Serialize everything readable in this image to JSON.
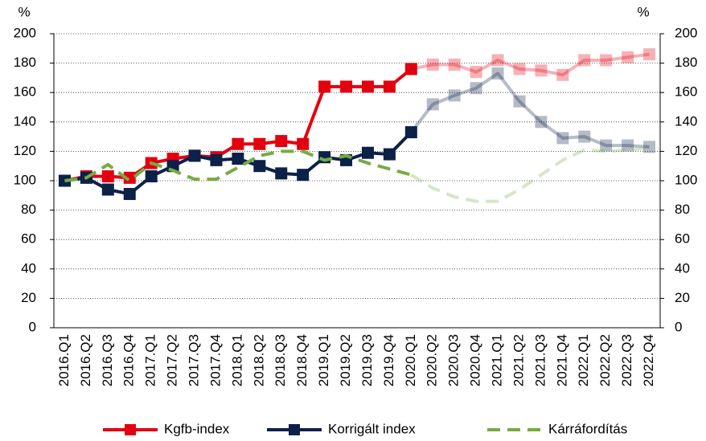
{
  "chart_data": {
    "type": "line",
    "y_unit_left": "%",
    "y_unit_right": "%",
    "categories": [
      "2016.Q1",
      "2016.Q2",
      "2016.Q3",
      "2016.Q4",
      "2017.Q1",
      "2017.Q2",
      "2017.Q3",
      "2017.Q4",
      "2018.Q1",
      "2018.Q2",
      "2018.Q3",
      "2018.Q4",
      "2019.Q1",
      "2019.Q2",
      "2019.Q3",
      "2019.Q4",
      "2020.Q1",
      "2020.Q2",
      "2020.Q3",
      "2020.Q4",
      "2021.Q1",
      "2021.Q2",
      "2021.Q3",
      "2021.Q4",
      "2022.Q1",
      "2022.Q2",
      "2022.Q3",
      "2022.Q4"
    ],
    "faded_from": "2020.Q1",
    "series": [
      {
        "name": "Kgfb-index",
        "color": "#e3000f",
        "marker": "square",
        "line_style": "solid",
        "values": [
          100,
          103,
          103,
          102,
          112,
          115,
          117,
          116,
          125,
          125,
          127,
          125,
          164,
          164,
          164,
          164,
          176,
          179,
          179,
          174,
          182,
          176,
          175,
          172,
          182,
          182,
          184,
          186
        ]
      },
      {
        "name": "Korrigált index",
        "color": "#0c2148",
        "marker": "square",
        "line_style": "solid",
        "values": [
          100,
          102,
          94,
          91,
          103,
          110,
          117,
          114,
          115,
          110,
          105,
          104,
          116,
          114,
          119,
          118,
          133,
          152,
          158,
          163,
          173,
          154,
          140,
          129,
          130,
          124,
          124,
          123
        ]
      },
      {
        "name": "Kárráfordítás",
        "color": "#77ab43",
        "marker": "none",
        "line_style": "dashed",
        "values": [
          100,
          102,
          111,
          100,
          112,
          107,
          101,
          101,
          109,
          117,
          120,
          120,
          114,
          117,
          112,
          108,
          104,
          95,
          89,
          86,
          86,
          94,
          104,
          114,
          121,
          120,
          121,
          122
        ]
      }
    ],
    "ylim": [
      0,
      200
    ],
    "yticks": [
      0,
      20,
      40,
      60,
      80,
      100,
      120,
      140,
      160,
      180,
      200
    ],
    "y2lim": [
      0,
      200
    ],
    "y2ticks": [
      0,
      20,
      40,
      60,
      80,
      100,
      120,
      140,
      160,
      180,
      200
    ],
    "grid": true,
    "legend": "bottom"
  }
}
